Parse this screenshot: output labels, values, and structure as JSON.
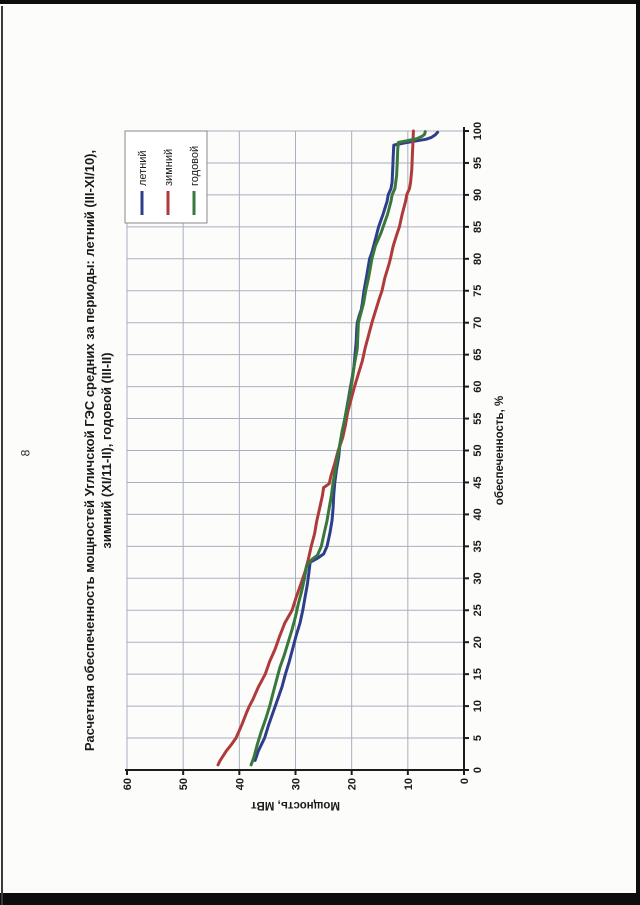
{
  "page": {
    "number": "8"
  },
  "scan": {
    "edge_color": "#0d0d0d",
    "paper_color": "#fcfcfa"
  },
  "chart_data": {
    "type": "line",
    "orientation": "chart_rotated_90ccw_on_portrait_page",
    "title_lines": [
      "Расчетная обеспеченность мощностей Угличской ГЭС средних за периоды: летний (III-XI/10),",
      "зимний (XI/11-II), годовой (III-II)"
    ],
    "xlabel": "обеспеченность, %",
    "ylabel": "Мощность, МВт",
    "xlim": [
      0,
      100
    ],
    "ylim": [
      0,
      60
    ],
    "x_ticks": [
      0,
      5,
      10,
      15,
      20,
      25,
      30,
      35,
      40,
      45,
      50,
      55,
      60,
      65,
      70,
      75,
      80,
      85,
      90,
      95,
      100
    ],
    "y_ticks": [
      0,
      10,
      20,
      30,
      40,
      50,
      60
    ],
    "grid": {
      "x_step": 5,
      "y_step": 10
    },
    "legend_position": "top-right",
    "colors": {
      "grid": "#a9b0bd",
      "axis": "#1c1c1c",
      "text": "#1a1a1a",
      "legend_border": "#8a8a8a"
    },
    "series": [
      {
        "name": "летний",
        "color": "#2f3e8c",
        "points": [
          [
            1.5,
            37.2
          ],
          [
            3,
            36.6
          ],
          [
            5,
            35.5
          ],
          [
            7,
            34.8
          ],
          [
            9,
            34.0
          ],
          [
            11,
            33.2
          ],
          [
            13,
            32.4
          ],
          [
            15,
            31.8
          ],
          [
            17,
            31.1
          ],
          [
            19,
            30.5
          ],
          [
            21,
            29.9
          ],
          [
            23,
            29.2
          ],
          [
            25,
            28.7
          ],
          [
            27,
            28.3
          ],
          [
            29,
            27.9
          ],
          [
            31,
            27.6
          ],
          [
            32.5,
            27.4
          ],
          [
            33.2,
            26.0
          ],
          [
            33.8,
            25.0
          ],
          [
            35,
            24.4
          ],
          [
            37,
            23.9
          ],
          [
            39,
            23.5
          ],
          [
            41,
            23.3
          ],
          [
            43,
            23.2
          ],
          [
            45,
            23.0
          ],
          [
            47,
            22.7
          ],
          [
            49,
            22.3
          ],
          [
            51,
            22.1
          ],
          [
            53,
            21.6
          ],
          [
            55,
            21.2
          ],
          [
            57,
            20.8
          ],
          [
            59,
            20.4
          ],
          [
            61,
            20.0
          ],
          [
            63,
            19.6
          ],
          [
            65,
            19.4
          ],
          [
            67,
            19.2
          ],
          [
            69,
            19.1
          ],
          [
            70,
            19.0
          ],
          [
            71,
            18.7
          ],
          [
            72,
            18.3
          ],
          [
            73,
            18.1
          ],
          [
            75,
            17.8
          ],
          [
            77,
            17.4
          ],
          [
            79,
            17.0
          ],
          [
            80,
            16.8
          ],
          [
            81,
            16.4
          ],
          [
            83,
            15.8
          ],
          [
            85,
            15.2
          ],
          [
            87,
            14.4
          ],
          [
            89,
            13.7
          ],
          [
            90,
            13.5
          ],
          [
            91,
            13.0
          ],
          [
            92,
            12.8
          ],
          [
            94,
            12.7
          ],
          [
            96,
            12.6
          ],
          [
            97.8,
            12.5
          ],
          [
            98.1,
            10.8
          ],
          [
            98.4,
            8.8
          ],
          [
            98.7,
            6.8
          ],
          [
            99.0,
            5.8
          ],
          [
            99.4,
            5.1
          ],
          [
            99.8,
            4.7
          ]
        ]
      },
      {
        "name": "зимний",
        "color": "#af3a3c",
        "points": [
          [
            0.8,
            43.8
          ],
          [
            1.5,
            43.4
          ],
          [
            3,
            42.3
          ],
          [
            4,
            41.4
          ],
          [
            5,
            40.6
          ],
          [
            7,
            39.6
          ],
          [
            9,
            38.7
          ],
          [
            10,
            38.2
          ],
          [
            11,
            37.6
          ],
          [
            13,
            36.6
          ],
          [
            15,
            35.4
          ],
          [
            17,
            34.6
          ],
          [
            19,
            33.6
          ],
          [
            21,
            32.8
          ],
          [
            23,
            31.9
          ],
          [
            25,
            30.6
          ],
          [
            27,
            29.9
          ],
          [
            29,
            29.1
          ],
          [
            31,
            28.3
          ],
          [
            33,
            27.7
          ],
          [
            35,
            27.2
          ],
          [
            37,
            26.6
          ],
          [
            39,
            26.2
          ],
          [
            41,
            25.7
          ],
          [
            43,
            25.2
          ],
          [
            44.2,
            25.0
          ],
          [
            44.8,
            24.0
          ],
          [
            46,
            23.7
          ],
          [
            48,
            23.0
          ],
          [
            50,
            22.4
          ],
          [
            52,
            21.6
          ],
          [
            54,
            21.1
          ],
          [
            56,
            20.7
          ],
          [
            58,
            20.1
          ],
          [
            60,
            19.5
          ],
          [
            62,
            18.8
          ],
          [
            64,
            18.1
          ],
          [
            66,
            17.6
          ],
          [
            68,
            17.0
          ],
          [
            70,
            16.4
          ],
          [
            72,
            15.7
          ],
          [
            74,
            15.0
          ],
          [
            75,
            14.6
          ],
          [
            77,
            14.1
          ],
          [
            79,
            13.4
          ],
          [
            80,
            13.1
          ],
          [
            82,
            12.6
          ],
          [
            84,
            11.9
          ],
          [
            85,
            11.5
          ],
          [
            87,
            11.0
          ],
          [
            89,
            10.4
          ],
          [
            90,
            10.2
          ],
          [
            91,
            9.7
          ],
          [
            92,
            9.5
          ],
          [
            94,
            9.3
          ],
          [
            96,
            9.2
          ],
          [
            98,
            9.1
          ],
          [
            100,
            9.0
          ]
        ]
      },
      {
        "name": "годовой",
        "color": "#39783c",
        "points": [
          [
            0.8,
            37.9
          ],
          [
            2,
            37.4
          ],
          [
            4,
            36.8
          ],
          [
            6,
            36.1
          ],
          [
            8,
            35.3
          ],
          [
            10,
            34.6
          ],
          [
            12,
            34.0
          ],
          [
            14,
            33.4
          ],
          [
            16,
            32.8
          ],
          [
            18,
            32.0
          ],
          [
            20,
            31.3
          ],
          [
            22,
            30.6
          ],
          [
            24,
            30.0
          ],
          [
            26,
            29.5
          ],
          [
            28,
            28.9
          ],
          [
            30,
            28.4
          ],
          [
            32,
            28.0
          ],
          [
            33,
            27.0
          ],
          [
            33.6,
            26.1
          ],
          [
            35,
            25.4
          ],
          [
            37,
            24.9
          ],
          [
            39,
            24.4
          ],
          [
            41,
            24.0
          ],
          [
            43,
            23.6
          ],
          [
            45,
            23.3
          ],
          [
            47,
            22.9
          ],
          [
            49,
            22.5
          ],
          [
            51,
            22.1
          ],
          [
            53,
            21.7
          ],
          [
            55,
            21.2
          ],
          [
            57,
            20.8
          ],
          [
            59,
            20.3
          ],
          [
            61,
            19.9
          ],
          [
            63,
            19.6
          ],
          [
            64,
            19.4
          ],
          [
            66,
            19.0
          ],
          [
            68,
            18.9
          ],
          [
            70,
            18.8
          ],
          [
            71,
            18.5
          ],
          [
            73,
            17.9
          ],
          [
            75,
            17.5
          ],
          [
            77,
            17.0
          ],
          [
            79,
            16.6
          ],
          [
            80,
            16.4
          ],
          [
            82,
            15.8
          ],
          [
            84,
            14.8
          ],
          [
            85,
            14.4
          ],
          [
            87,
            13.6
          ],
          [
            89,
            13.0
          ],
          [
            90,
            12.8
          ],
          [
            91,
            12.3
          ],
          [
            93,
            12.0
          ],
          [
            95,
            11.9
          ],
          [
            97,
            11.8
          ],
          [
            98.2,
            11.7
          ],
          [
            98.5,
            10.0
          ],
          [
            98.8,
            8.4
          ],
          [
            99.2,
            7.4
          ],
          [
            99.5,
            7.0
          ],
          [
            99.9,
            6.9
          ]
        ]
      }
    ]
  }
}
